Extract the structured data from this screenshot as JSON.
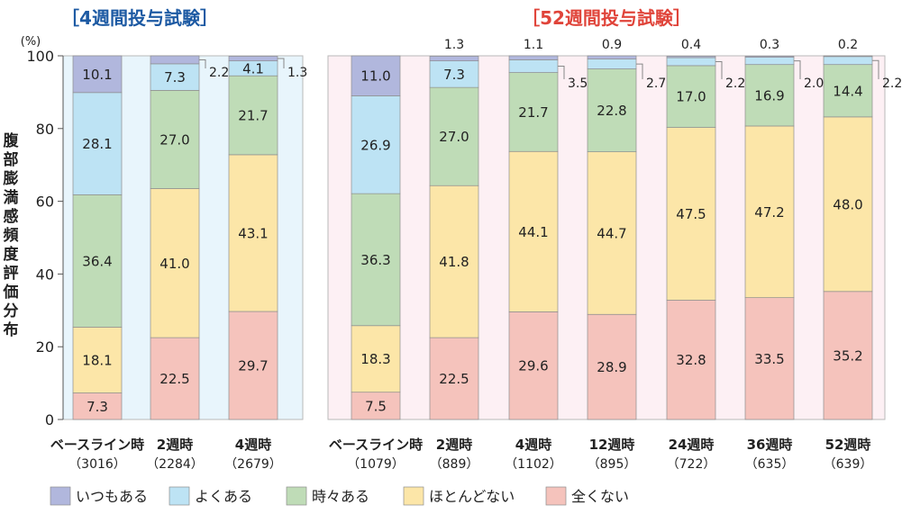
{
  "chart_data": {
    "type": "bar",
    "stacked": true,
    "ylabel": "腹部膨満感頻度評価分布",
    "yunit": "(%)",
    "ylim": [
      0,
      100
    ],
    "yticks": [
      "0",
      "20",
      "40",
      "60",
      "80",
      "100"
    ],
    "series": [
      {
        "name": "全くない",
        "color": "#f5c3bc"
      },
      {
        "name": "ほとんどない",
        "color": "#fce6a8"
      },
      {
        "name": "時々ある",
        "color": "#bfdcb7"
      },
      {
        "name": "よくある",
        "color": "#bde3f4"
      },
      {
        "name": "いつもある",
        "color": "#b1b7dd"
      }
    ],
    "legend_order": [
      "いつもある",
      "よくある",
      "時々ある",
      "ほとんどない",
      "全くない"
    ],
    "legend_position": "bottom",
    "panels": [
      {
        "title": "［4週間投与試験］",
        "title_color": "#1d5aa3",
        "bg": "#e8f5fc",
        "categories": [
          {
            "name": "ベースライン時",
            "n": "（3016）",
            "values": [
              7.3,
              18.1,
              36.4,
              28.1,
              10.1
            ],
            "labels": [
              "7.3",
              "18.1",
              "36.4",
              "28.1",
              "10.1"
            ],
            "outside": []
          },
          {
            "name": "2週時",
            "n": "（2284）",
            "values": [
              22.5,
              41.0,
              27.0,
              7.3,
              2.2
            ],
            "labels": [
              "22.5",
              "41.0",
              "27.0",
              "7.3",
              "2.2"
            ],
            "outside": [
              {
                "series": 4,
                "side": "right"
              }
            ]
          },
          {
            "name": "4週時",
            "n": "（2679）",
            "values": [
              29.7,
              43.1,
              21.7,
              4.1,
              1.3
            ],
            "labels": [
              "29.7",
              "43.1",
              "21.7",
              "4.1",
              "1.3"
            ],
            "outside": [
              {
                "series": 4,
                "side": "right"
              }
            ]
          }
        ]
      },
      {
        "title": "［52週間投与試験］",
        "title_color": "#e0443a",
        "bg": "#fdf0f4",
        "categories": [
          {
            "name": "ベースライン時",
            "n": "（1079）",
            "values": [
              7.5,
              18.3,
              36.3,
              26.9,
              11.0
            ],
            "labels": [
              "7.5",
              "18.3",
              "36.3",
              "26.9",
              "11.0"
            ],
            "outside": []
          },
          {
            "name": "2週時",
            "n": "（889）",
            "values": [
              22.5,
              41.8,
              27.0,
              7.3,
              1.3
            ],
            "labels": [
              "22.5",
              "41.8",
              "27.0",
              "7.3",
              "1.3"
            ],
            "outside": [
              {
                "series": 4,
                "side": "top"
              }
            ]
          },
          {
            "name": "4週時",
            "n": "（1102）",
            "values": [
              29.6,
              44.1,
              21.7,
              3.5,
              1.1
            ],
            "labels": [
              "29.6",
              "44.1",
              "21.7",
              "3.5",
              "1.1"
            ],
            "outside": [
              {
                "series": 3,
                "side": "right"
              },
              {
                "series": 4,
                "side": "top"
              }
            ]
          },
          {
            "name": "12週時",
            "n": "（895）",
            "values": [
              28.9,
              44.7,
              22.8,
              2.7,
              0.9
            ],
            "labels": [
              "28.9",
              "44.7",
              "22.8",
              "2.7",
              "0.9"
            ],
            "outside": [
              {
                "series": 3,
                "side": "right"
              },
              {
                "series": 4,
                "side": "top"
              }
            ]
          },
          {
            "name": "24週時",
            "n": "（722）",
            "values": [
              32.8,
              47.5,
              17.0,
              2.2,
              0.4
            ],
            "labels": [
              "32.8",
              "47.5",
              "17.0",
              "2.2",
              "0.4"
            ],
            "outside": [
              {
                "series": 3,
                "side": "right"
              },
              {
                "series": 4,
                "side": "top"
              }
            ]
          },
          {
            "name": "36週時",
            "n": "（635）",
            "values": [
              33.5,
              47.2,
              16.9,
              2.0,
              0.3
            ],
            "labels": [
              "33.5",
              "47.2",
              "16.9",
              "2.0",
              "0.3"
            ],
            "outside": [
              {
                "series": 3,
                "side": "right"
              },
              {
                "series": 4,
                "side": "top"
              }
            ]
          },
          {
            "name": "52週時",
            "n": "（639）",
            "values": [
              35.2,
              48.0,
              14.4,
              2.2,
              0.2
            ],
            "labels": [
              "35.2",
              "48.0",
              "14.4",
              "2.2",
              "0.2"
            ],
            "outside": [
              {
                "series": 3,
                "side": "right"
              },
              {
                "series": 4,
                "side": "top"
              }
            ]
          }
        ]
      }
    ]
  }
}
